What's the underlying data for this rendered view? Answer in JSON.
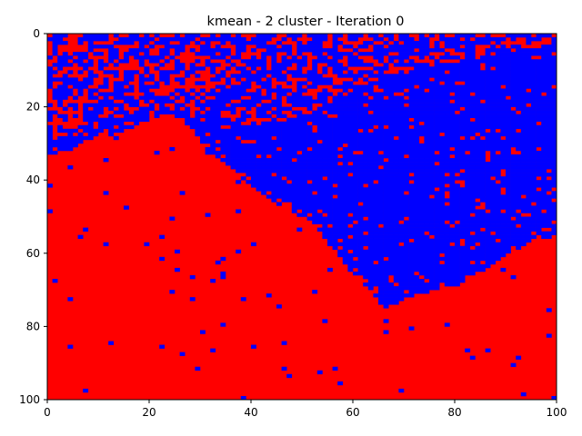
{
  "chart_data": {
    "type": "heatmap",
    "title": "kmean - 2 cluster - Iteration 0",
    "xlabel": "",
    "ylabel": "",
    "xlim": [
      0,
      100
    ],
    "ylim": [
      100,
      0
    ],
    "y_axis_inverted": true,
    "x_ticks": [
      0,
      20,
      40,
      60,
      80,
      100
    ],
    "y_ticks": [
      0,
      20,
      40,
      60,
      80,
      100
    ],
    "grid": false,
    "legend": "none",
    "grid_size": [
      100,
      100
    ],
    "clusters": [
      {
        "id": 0,
        "color": "#0000ff"
      },
      {
        "id": 1,
        "color": "#ff0000"
      }
    ],
    "lower_cluster_boundary": {
      "description_units": "row index (y) where the solid red region begins, per column x",
      "points": [
        [
          0,
          33
        ],
        [
          5,
          31
        ],
        [
          10,
          27
        ],
        [
          15,
          26
        ],
        [
          20,
          23
        ],
        [
          25,
          21
        ],
        [
          28,
          25
        ],
        [
          32,
          32
        ],
        [
          36,
          36
        ],
        [
          40,
          41
        ],
        [
          44,
          45
        ],
        [
          48,
          48
        ],
        [
          52,
          51
        ],
        [
          56,
          58
        ],
        [
          60,
          65
        ],
        [
          64,
          70
        ],
        [
          66,
          75
        ],
        [
          70,
          72
        ],
        [
          75,
          70
        ],
        [
          80,
          68
        ],
        [
          85,
          65
        ],
        [
          90,
          60
        ],
        [
          95,
          56
        ],
        [
          100,
          55
        ]
      ]
    },
    "noise_band": {
      "description_units": "row index above which blue dominates with scattered red cells, per column x",
      "points": [
        [
          0,
          29
        ],
        [
          10,
          25
        ],
        [
          20,
          21
        ],
        [
          30,
          20
        ],
        [
          40,
          25
        ],
        [
          50,
          22
        ],
        [
          60,
          15
        ],
        [
          70,
          10
        ],
        [
          80,
          8
        ],
        [
          90,
          5
        ],
        [
          100,
          3
        ]
      ]
    }
  }
}
